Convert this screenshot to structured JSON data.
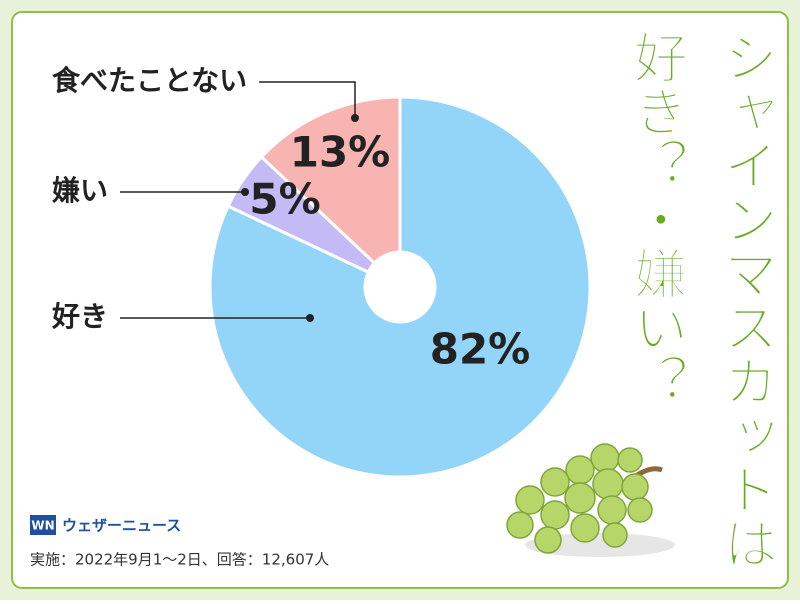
{
  "chart_data": {
    "type": "pie",
    "title": "シャインマスカットは",
    "subtitle": "好き？・嫌い？",
    "categories": [
      "好き",
      "嫌い",
      "食べたことない"
    ],
    "values": [
      82,
      5,
      13
    ],
    "value_labels": [
      "82%",
      "5%",
      "13%"
    ],
    "colors": [
      "#93d5f8",
      "#c4bbf6",
      "#f8b4b1"
    ]
  },
  "footer": {
    "logo": "WN",
    "brand": "ウェザーニュース",
    "note": "実施：2022年9月1～2日、回答：12,607人"
  }
}
